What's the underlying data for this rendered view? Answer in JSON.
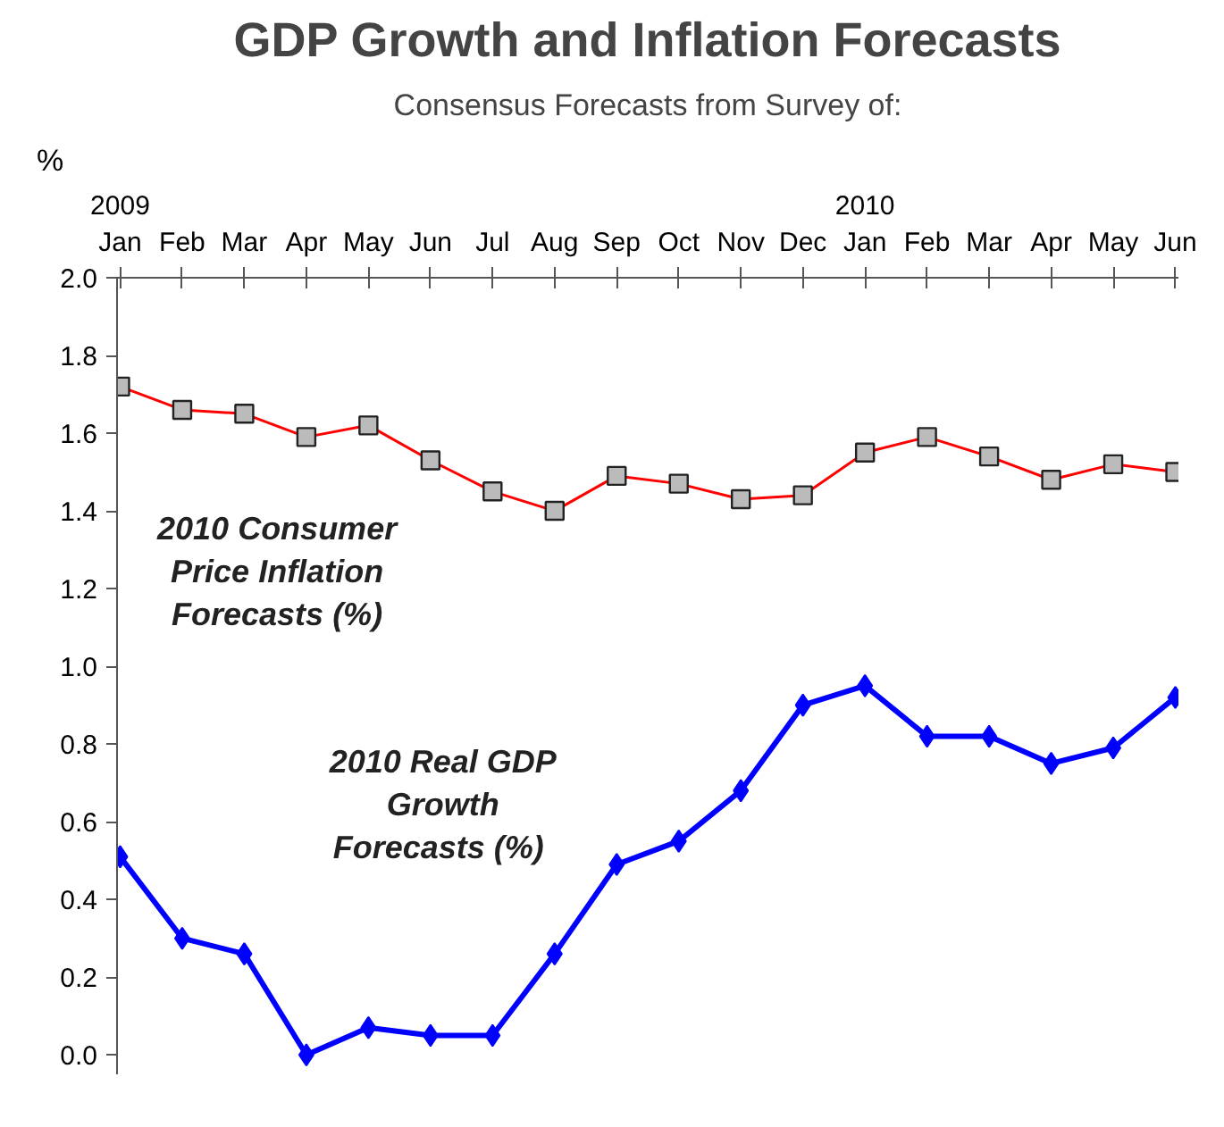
{
  "chart_data": {
    "type": "line",
    "title": "GDP Growth and Inflation Forecasts",
    "subtitle": "Consensus Forecasts from Survey of:",
    "ylabel": "%",
    "categories": [
      "2009\nJan",
      "Feb",
      "Mar",
      "Apr",
      "May",
      "Jun",
      "Jul",
      "Aug",
      "Sep",
      "Oct",
      "Nov",
      "Dec",
      "2010\nJan",
      "Feb",
      "Mar",
      "Apr",
      "May",
      "Jun"
    ],
    "series": [
      {
        "name": "2010  Consumer\nPrice  Inflation\nForecasts  (%)",
        "color": "#ff0000",
        "marker": "square",
        "values": [
          1.72,
          1.66,
          1.65,
          1.59,
          1.62,
          1.53,
          1.45,
          1.4,
          1.49,
          1.47,
          1.43,
          1.44,
          1.55,
          1.59,
          1.54,
          1.48,
          1.52,
          1.5
        ]
      },
      {
        "name": "2010 Real GDP\nGrowth\nForecasts  (%)",
        "color": "#0000ff",
        "marker": "diamond",
        "values": [
          0.51,
          0.3,
          0.26,
          0.0,
          0.07,
          0.05,
          0.05,
          0.26,
          0.49,
          0.55,
          0.68,
          0.9,
          0.95,
          0.82,
          0.82,
          0.75,
          0.79,
          0.92
        ]
      }
    ],
    "ylim": [
      -0.05,
      2.0
    ],
    "yticks": [
      {
        "value": 0,
        "label": "0.0"
      },
      0.2,
      0.4,
      0.6,
      0.8,
      {
        "value": 1,
        "label": "1.0"
      },
      1.2,
      1.4,
      1.6,
      1.8,
      {
        "value": 2,
        "label": "2.0"
      }
    ],
    "grid": false,
    "line_style": "solid"
  }
}
